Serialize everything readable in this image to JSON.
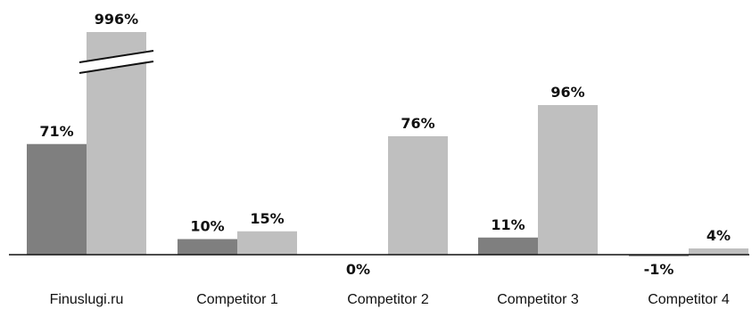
{
  "chart_data": {
    "type": "bar",
    "categories": [
      "Finuslugi.ru",
      "Competitor 1",
      "Competitor 2",
      "Competitor 3",
      "Competitor 4"
    ],
    "series": [
      {
        "values": [
          71,
          10,
          0,
          11,
          -1
        ],
        "labels": [
          "71%",
          "10%",
          "0%",
          "11%",
          "-1%"
        ],
        "color": "#7f7f7f"
      },
      {
        "values": [
          996,
          15,
          76,
          96,
          4
        ],
        "labels": [
          "996%",
          "15%",
          "76%",
          "96%",
          "4%"
        ],
        "color": "#bfbfbf"
      }
    ],
    "axis_break": {
      "category": "Finuslugi.ru",
      "series_index": 1
    },
    "title": "",
    "xlabel": "",
    "ylabel": "",
    "grid": false,
    "legend": "none"
  }
}
